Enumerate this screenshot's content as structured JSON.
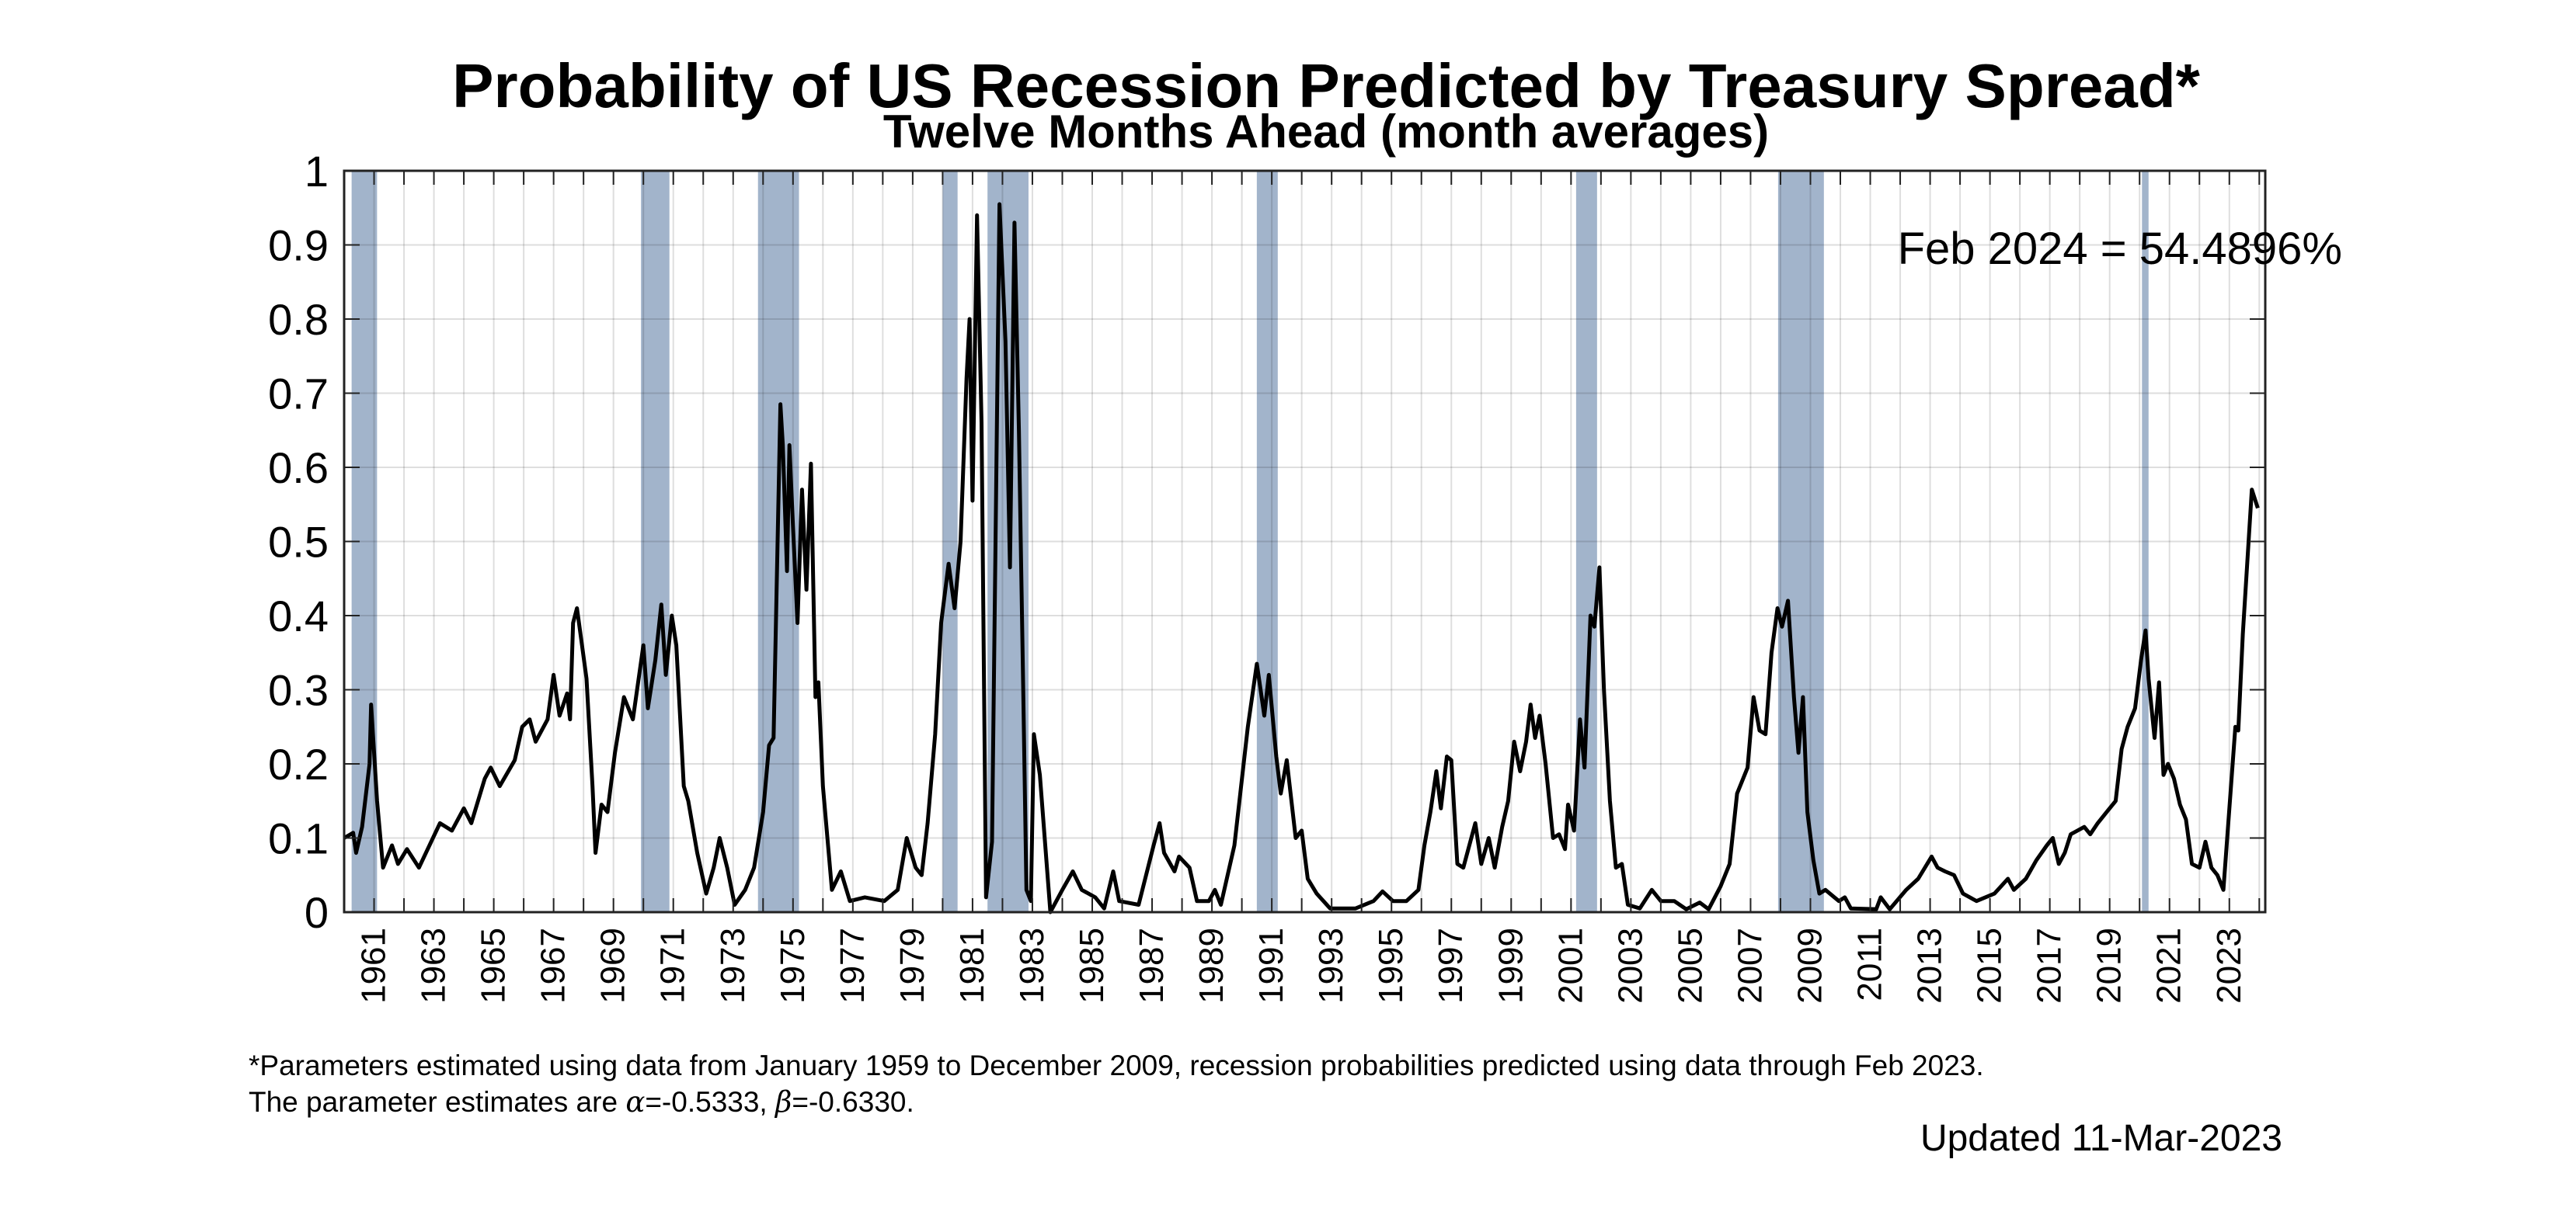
{
  "chart_data": {
    "type": "line",
    "title": "Probability of US Recession Predicted by Treasury Spread*",
    "subtitle": "Twelve Months Ahead (month averages)",
    "xlabel": "",
    "ylabel": "",
    "xlim": [
      1960,
      2024.2
    ],
    "ylim": [
      0,
      1
    ],
    "grid": true,
    "y_ticks": [
      "0",
      "0.1",
      "0.2",
      "0.3",
      "0.4",
      "0.5",
      "0.6",
      "0.7",
      "0.8",
      "0.9",
      "1"
    ],
    "x_tick_labels": [
      "1961",
      "1963",
      "1965",
      "1967",
      "1969",
      "1971",
      "1973",
      "1975",
      "1977",
      "1979",
      "1981",
      "1983",
      "1985",
      "1987",
      "1989",
      "1991",
      "1993",
      "1995",
      "1997",
      "1999",
      "2001",
      "2003",
      "2005",
      "2007",
      "2009",
      "2011",
      "2013",
      "2015",
      "2017",
      "2019",
      "2021",
      "2023"
    ],
    "annotation": "Feb 2024 = 54.4896%",
    "series_color": "#000000",
    "band_color": "#a2b4cb",
    "recessions": [
      [
        1960.25,
        1961.1
      ],
      [
        1969.92,
        1970.87
      ],
      [
        1973.83,
        1975.2
      ],
      [
        1980.0,
        1980.5
      ],
      [
        1981.5,
        1982.87
      ],
      [
        1990.5,
        1991.2
      ],
      [
        2001.17,
        2001.87
      ],
      [
        2007.92,
        2009.45
      ],
      [
        2020.08,
        2020.3
      ]
    ],
    "series": [
      {
        "name": "Recession probability",
        "points": [
          [
            1960.0,
            0.1
          ],
          [
            1960.3,
            0.107
          ],
          [
            1960.4,
            0.08
          ],
          [
            1960.6,
            0.115
          ],
          [
            1960.85,
            0.2
          ],
          [
            1960.9,
            0.28
          ],
          [
            1961.1,
            0.15
          ],
          [
            1961.3,
            0.06
          ],
          [
            1961.6,
            0.09
          ],
          [
            1961.8,
            0.065
          ],
          [
            1962.1,
            0.085
          ],
          [
            1962.5,
            0.06
          ],
          [
            1963.2,
            0.12
          ],
          [
            1963.6,
            0.11
          ],
          [
            1964.0,
            0.14
          ],
          [
            1964.25,
            0.12
          ],
          [
            1964.7,
            0.18
          ],
          [
            1964.9,
            0.195
          ],
          [
            1965.2,
            0.17
          ],
          [
            1965.7,
            0.205
          ],
          [
            1965.95,
            0.25
          ],
          [
            1966.2,
            0.26
          ],
          [
            1966.4,
            0.23
          ],
          [
            1966.8,
            0.26
          ],
          [
            1967.0,
            0.32
          ],
          [
            1967.2,
            0.265
          ],
          [
            1967.45,
            0.295
          ],
          [
            1967.55,
            0.26
          ],
          [
            1967.65,
            0.39
          ],
          [
            1967.78,
            0.41
          ],
          [
            1967.95,
            0.36
          ],
          [
            1968.1,
            0.315
          ],
          [
            1968.3,
            0.17
          ],
          [
            1968.4,
            0.08
          ],
          [
            1968.6,
            0.145
          ],
          [
            1968.8,
            0.135
          ],
          [
            1969.05,
            0.215
          ],
          [
            1969.35,
            0.29
          ],
          [
            1969.65,
            0.26
          ],
          [
            1970.0,
            0.36
          ],
          [
            1970.15,
            0.275
          ],
          [
            1970.4,
            0.34
          ],
          [
            1970.6,
            0.415
          ],
          [
            1970.75,
            0.32
          ],
          [
            1970.95,
            0.4
          ],
          [
            1971.1,
            0.36
          ],
          [
            1971.35,
            0.17
          ],
          [
            1971.5,
            0.15
          ],
          [
            1971.8,
            0.08
          ],
          [
            1972.1,
            0.025
          ],
          [
            1972.35,
            0.06
          ],
          [
            1972.55,
            0.1
          ],
          [
            1972.8,
            0.06
          ],
          [
            1973.05,
            0.01
          ],
          [
            1973.4,
            0.03
          ],
          [
            1973.7,
            0.06
          ],
          [
            1974.0,
            0.135
          ],
          [
            1974.2,
            0.225
          ],
          [
            1974.35,
            0.235
          ],
          [
            1974.58,
            0.685
          ],
          [
            1974.66,
            0.63
          ],
          [
            1974.8,
            0.46
          ],
          [
            1974.88,
            0.63
          ],
          [
            1975.0,
            0.52
          ],
          [
            1975.15,
            0.39
          ],
          [
            1975.3,
            0.57
          ],
          [
            1975.45,
            0.435
          ],
          [
            1975.6,
            0.605
          ],
          [
            1975.75,
            0.29
          ],
          [
            1975.85,
            0.31
          ],
          [
            1976.0,
            0.17
          ],
          [
            1976.3,
            0.03
          ],
          [
            1976.6,
            0.055
          ],
          [
            1976.9,
            0.015
          ],
          [
            1977.4,
            0.02
          ],
          [
            1978.05,
            0.015
          ],
          [
            1978.5,
            0.03
          ],
          [
            1978.8,
            0.1
          ],
          [
            1979.1,
            0.06
          ],
          [
            1979.3,
            0.05
          ],
          [
            1979.5,
            0.12
          ],
          [
            1979.75,
            0.24
          ],
          [
            1979.95,
            0.39
          ],
          [
            1980.2,
            0.47
          ],
          [
            1980.4,
            0.41
          ],
          [
            1980.6,
            0.5
          ],
          [
            1980.8,
            0.72
          ],
          [
            1980.9,
            0.8
          ],
          [
            1981.0,
            0.555
          ],
          [
            1981.15,
            0.94
          ],
          [
            1981.3,
            0.66
          ],
          [
            1981.45,
            0.02
          ],
          [
            1981.65,
            0.095
          ],
          [
            1981.9,
            0.955
          ],
          [
            1982.1,
            0.77
          ],
          [
            1982.25,
            0.465
          ],
          [
            1982.4,
            0.93
          ],
          [
            1982.55,
            0.65
          ],
          [
            1982.7,
            0.285
          ],
          [
            1982.8,
            0.03
          ],
          [
            1982.95,
            0.015
          ],
          [
            1983.05,
            0.24
          ],
          [
            1983.25,
            0.185
          ],
          [
            1983.6,
            0.0
          ],
          [
            1984.0,
            0.03
          ],
          [
            1984.35,
            0.055
          ],
          [
            1984.65,
            0.03
          ],
          [
            1985.1,
            0.02
          ],
          [
            1985.4,
            0.005
          ],
          [
            1985.7,
            0.055
          ],
          [
            1985.9,
            0.015
          ],
          [
            1986.55,
            0.01
          ],
          [
            1987.05,
            0.09
          ],
          [
            1987.25,
            0.12
          ],
          [
            1987.4,
            0.08
          ],
          [
            1987.75,
            0.055
          ],
          [
            1987.9,
            0.075
          ],
          [
            1988.25,
            0.06
          ],
          [
            1988.5,
            0.015
          ],
          [
            1988.9,
            0.015
          ],
          [
            1989.1,
            0.03
          ],
          [
            1989.3,
            0.01
          ],
          [
            1989.75,
            0.09
          ],
          [
            1990.2,
            0.25
          ],
          [
            1990.5,
            0.335
          ],
          [
            1990.75,
            0.265
          ],
          [
            1990.9,
            0.32
          ],
          [
            1991.15,
            0.21
          ],
          [
            1991.3,
            0.16
          ],
          [
            1991.5,
            0.205
          ],
          [
            1991.8,
            0.1
          ],
          [
            1992.0,
            0.11
          ],
          [
            1992.2,
            0.045
          ],
          [
            1992.5,
            0.025
          ],
          [
            1992.95,
            0.005
          ],
          [
            1993.8,
            0.005
          ],
          [
            1994.4,
            0.015
          ],
          [
            1994.7,
            0.028
          ],
          [
            1995.05,
            0.015
          ],
          [
            1995.5,
            0.015
          ],
          [
            1995.9,
            0.03
          ],
          [
            1996.1,
            0.09
          ],
          [
            1996.3,
            0.135
          ],
          [
            1996.5,
            0.19
          ],
          [
            1996.65,
            0.14
          ],
          [
            1996.85,
            0.21
          ],
          [
            1997.0,
            0.205
          ],
          [
            1997.2,
            0.065
          ],
          [
            1997.4,
            0.06
          ],
          [
            1997.8,
            0.12
          ],
          [
            1998.0,
            0.065
          ],
          [
            1998.25,
            0.1
          ],
          [
            1998.45,
            0.06
          ],
          [
            1998.7,
            0.115
          ],
          [
            1998.9,
            0.15
          ],
          [
            1999.1,
            0.23
          ],
          [
            1999.3,
            0.19
          ],
          [
            1999.5,
            0.23
          ],
          [
            1999.65,
            0.28
          ],
          [
            1999.8,
            0.235
          ],
          [
            1999.95,
            0.265
          ],
          [
            2000.15,
            0.2
          ],
          [
            2000.4,
            0.1
          ],
          [
            2000.6,
            0.105
          ],
          [
            2000.8,
            0.085
          ],
          [
            2000.9,
            0.145
          ],
          [
            2001.1,
            0.11
          ],
          [
            2001.3,
            0.26
          ],
          [
            2001.45,
            0.195
          ],
          [
            2001.65,
            0.4
          ],
          [
            2001.78,
            0.385
          ],
          [
            2001.95,
            0.465
          ],
          [
            2002.1,
            0.3
          ],
          [
            2002.3,
            0.15
          ],
          [
            2002.5,
            0.06
          ],
          [
            2002.7,
            0.065
          ],
          [
            2002.9,
            0.01
          ],
          [
            2003.3,
            0.005
          ],
          [
            2003.7,
            0.03
          ],
          [
            2004.0,
            0.015
          ],
          [
            2004.45,
            0.015
          ],
          [
            2004.85,
            0.004
          ],
          [
            2005.3,
            0.013
          ],
          [
            2005.6,
            0.004
          ],
          [
            2006.0,
            0.035
          ],
          [
            2006.3,
            0.065
          ],
          [
            2006.55,
            0.16
          ],
          [
            2006.9,
            0.195
          ],
          [
            2007.1,
            0.29
          ],
          [
            2007.3,
            0.245
          ],
          [
            2007.5,
            0.24
          ],
          [
            2007.7,
            0.35
          ],
          [
            2007.9,
            0.41
          ],
          [
            2008.05,
            0.385
          ],
          [
            2008.25,
            0.42
          ],
          [
            2008.45,
            0.29
          ],
          [
            2008.6,
            0.215
          ],
          [
            2008.75,
            0.29
          ],
          [
            2008.9,
            0.135
          ],
          [
            2009.1,
            0.07
          ],
          [
            2009.3,
            0.025
          ],
          [
            2009.5,
            0.03
          ],
          [
            2009.95,
            0.015
          ],
          [
            2010.15,
            0.02
          ],
          [
            2010.35,
            0.005
          ],
          [
            2011.2,
            0.004
          ],
          [
            2011.35,
            0.02
          ],
          [
            2011.65,
            0.004
          ],
          [
            2012.2,
            0.03
          ],
          [
            2012.6,
            0.045
          ],
          [
            2013.05,
            0.075
          ],
          [
            2013.25,
            0.06
          ],
          [
            2013.5,
            0.055
          ],
          [
            2013.8,
            0.05
          ],
          [
            2014.1,
            0.025
          ],
          [
            2014.55,
            0.015
          ],
          [
            2015.15,
            0.025
          ],
          [
            2015.6,
            0.045
          ],
          [
            2015.8,
            0.03
          ],
          [
            2016.2,
            0.045
          ],
          [
            2016.55,
            0.07
          ],
          [
            2016.9,
            0.09
          ],
          [
            2017.1,
            0.1
          ],
          [
            2017.3,
            0.065
          ],
          [
            2017.5,
            0.08
          ],
          [
            2017.7,
            0.105
          ],
          [
            2018.15,
            0.115
          ],
          [
            2018.35,
            0.105
          ],
          [
            2018.6,
            0.12
          ],
          [
            2018.9,
            0.135
          ],
          [
            2019.2,
            0.15
          ],
          [
            2019.4,
            0.22
          ],
          [
            2019.6,
            0.25
          ],
          [
            2019.85,
            0.275
          ],
          [
            2020.05,
            0.34
          ],
          [
            2020.2,
            0.38
          ],
          [
            2020.3,
            0.315
          ],
          [
            2020.5,
            0.235
          ],
          [
            2020.65,
            0.31
          ],
          [
            2020.8,
            0.185
          ],
          [
            2020.95,
            0.2
          ],
          [
            2021.15,
            0.18
          ],
          [
            2021.35,
            0.145
          ],
          [
            2021.55,
            0.125
          ],
          [
            2021.75,
            0.065
          ],
          [
            2022.0,
            0.06
          ],
          [
            2022.2,
            0.095
          ],
          [
            2022.4,
            0.06
          ],
          [
            2022.6,
            0.05
          ],
          [
            2022.8,
            0.03
          ],
          [
            2023.0,
            0.14
          ],
          [
            2023.2,
            0.25
          ],
          [
            2023.3,
            0.245
          ],
          [
            2023.45,
            0.375
          ],
          [
            2023.75,
            0.57
          ],
          [
            2023.95,
            0.545
          ]
        ]
      }
    ]
  },
  "footnote_line1": "*Parameters estimated using data from January 1959 to December 2009, recession probabilities predicted using data through Feb 2023.",
  "footnote_line2_prefix": "The parameter estimates are ",
  "alpha_symbol": "α",
  "alpha_value": "=-0.5333, ",
  "beta_symbol": "β",
  "beta_value": "=-0.6330.",
  "updated": "Updated 11-Mar-2023"
}
